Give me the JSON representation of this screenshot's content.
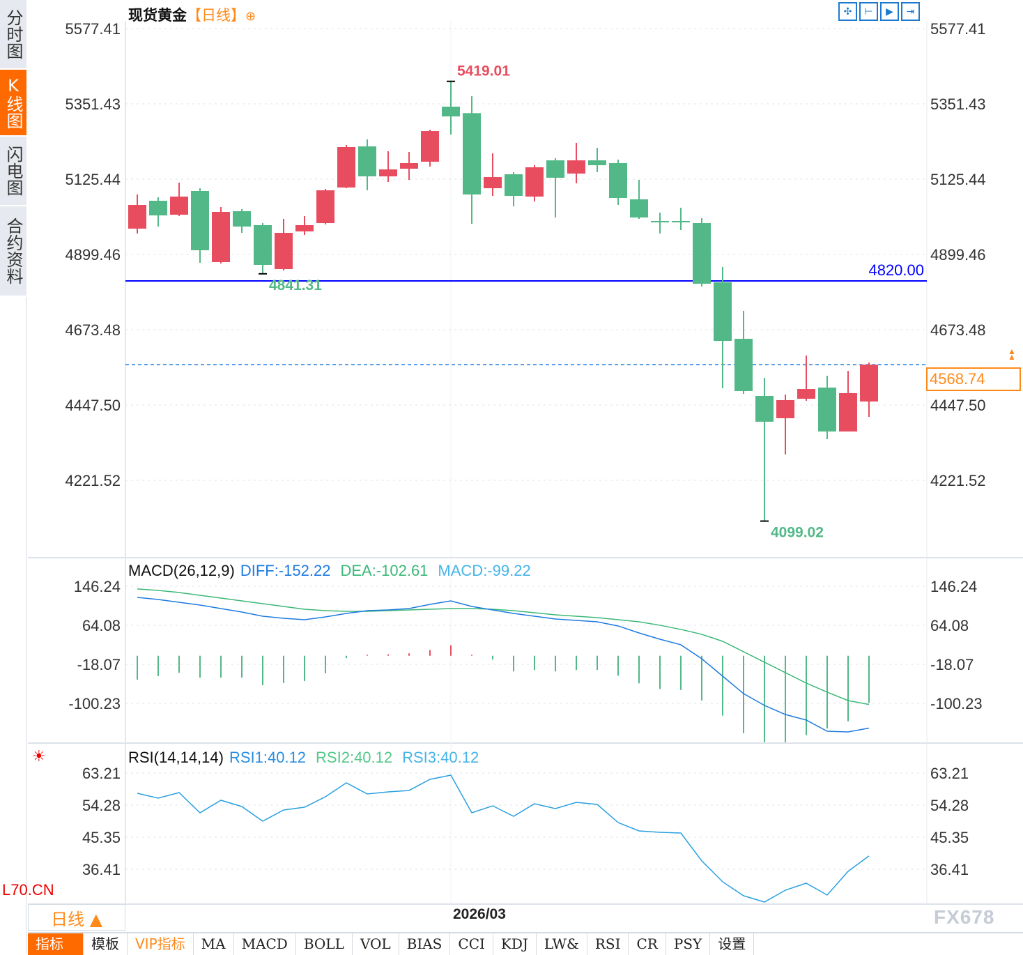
{
  "sidebar": {
    "items": [
      {
        "label": "分时图",
        "active": false
      },
      {
        "label": "K线图",
        "active": true
      },
      {
        "label": "闪电图",
        "active": false
      },
      {
        "label": "合约资料",
        "active": false
      }
    ]
  },
  "header": {
    "instrument": "现货黄金",
    "period": "【日线】",
    "tools": [
      "crosshair-icon",
      "zoom-range-icon",
      "play-icon",
      "goto-end-icon"
    ]
  },
  "colors": {
    "up": "#e84d5f",
    "down": "#52b887",
    "diff": "#1e7be0",
    "dea": "#3cb878",
    "rsi": "#2aa0e0",
    "accent": "#ff6a00",
    "hline": "#0000ff"
  },
  "main": {
    "y_ticks": [
      "5577.41",
      "5351.43",
      "5125.44",
      "4899.46",
      "4673.48",
      "4447.50",
      "4221.52"
    ],
    "high_marker": "5419.01",
    "low_marker_1": "4841.31",
    "low_marker_2": "4099.02",
    "hline_label": "4820.00",
    "last_price": "4568.74"
  },
  "macd": {
    "title": "MACD(26,12,9)",
    "diff_label": "DIFF:-152.22",
    "dea_label": "DEA:-102.61",
    "macd_label": "MACD:-99.22",
    "y_ticks": [
      "146.24",
      "64.08",
      "-18.07",
      "-100.23"
    ]
  },
  "rsi": {
    "title": "RSI(14,14,14)",
    "rsi1_label": "RSI1:40.12",
    "rsi2_label": "RSI2:40.12",
    "rsi3_label": "RSI3:40.12",
    "y_ticks": [
      "63.21",
      "54.28",
      "45.35",
      "36.41"
    ]
  },
  "footer": {
    "period": "日线 ▲",
    "date": "2026/03",
    "overlay_code": "L70.CN",
    "watermark": "FX678",
    "tabs": [
      "指标",
      "模板",
      "VIP指标",
      "MA",
      "MACD",
      "BOLL",
      "VOL",
      "BIAS",
      "CCI",
      "KDJ",
      "LW&",
      "RSI",
      "CR",
      "PSY",
      "设置"
    ]
  },
  "chart_data": {
    "type": "candlestick",
    "title": "现货黄金 日线",
    "ylim": [
      4099.02,
      5577.41
    ],
    "hline": 4820.0,
    "last": 4568.74,
    "ohlc": [
      [
        4976.9,
        5079.4,
        4962.2,
        5048.0
      ],
      [
        5060.6,
        5071.1,
        4983.2,
        5016.6
      ],
      [
        5018.7,
        5115.0,
        5014.6,
        5073.1
      ],
      [
        5089.9,
        5098.2,
        4874.4,
        4912.0
      ],
      [
        4876.5,
        5041.8,
        4872.3,
        5027.1
      ],
      [
        5029.2,
        5035.5,
        4964.3,
        4983.2
      ],
      [
        4987.4,
        4993.6,
        4841.31,
        4868.1
      ],
      [
        4855.5,
        5006.2,
        4851.3,
        4964.3
      ],
      [
        4968.5,
        5014.6,
        4958.1,
        4987.4
      ],
      [
        4993.6,
        5096.2,
        4989.5,
        5092.0
      ],
      [
        5100.3,
        5228.0,
        5098.2,
        5221.7
      ],
      [
        5223.8,
        5244.7,
        5092.0,
        5133.8
      ],
      [
        5133.8,
        5209.1,
        5117.1,
        5154.7
      ],
      [
        5156.8,
        5207.1,
        5123.4,
        5173.6
      ],
      [
        5177.8,
        5274.0,
        5163.1,
        5269.8
      ],
      [
        5343.1,
        5419.01,
        5259.4,
        5313.8
      ],
      [
        5323.6,
        5374.4,
        4991.5,
        5079.4
      ],
      [
        5098.2,
        5202.9,
        5075.2,
        5131.7
      ],
      [
        5140.1,
        5146.4,
        5043.8,
        5075.2
      ],
      [
        5073.1,
        5167.3,
        5058.5,
        5161.0
      ],
      [
        5181.9,
        5188.2,
        5010.4,
        5129.6
      ],
      [
        5142.2,
        5234.3,
        5112.9,
        5181.9
      ],
      [
        5181.9,
        5219.6,
        5146.4,
        5167.3
      ],
      [
        5173.6,
        5184.0,
        5048.0,
        5069.0
      ],
      [
        5064.8,
        5123.4,
        5006.2,
        5010.4
      ],
      [
        4999.9,
        5025.0,
        4962.2,
        4997.8
      ],
      [
        4999.9,
        5039.7,
        4972.7,
        4995.7
      ],
      [
        4993.6,
        5008.3,
        4803.2,
        4811.6
      ],
      [
        4815.8,
        4861.8,
        4497.7,
        4640.0
      ],
      [
        4646.3,
        4730.0,
        4481.0,
        4489.4
      ],
      [
        4474.7,
        4529.1,
        4099.02,
        4397.3
      ],
      [
        4407.8,
        4478.9,
        4299.0,
        4462.2
      ],
      [
        4466.3,
        4596.1,
        4460.1,
        4495.6
      ],
      [
        4499.8,
        4535.4,
        4345.0,
        4368.0
      ],
      [
        4368.0,
        4550.0,
        4368.0,
        4483.1
      ],
      [
        4458.0,
        4575.2,
        4412.0,
        4568.74
      ]
    ],
    "macd_ylim": [
      -190,
      160
    ],
    "macd_hist": [
      -50.3,
      -43,
      -35.7,
      -46,
      -46,
      -46,
      -62,
      -57.6,
      -53.3,
      -37.1,
      -5,
      2,
      3,
      5,
      12,
      22,
      2,
      -8,
      -33,
      -30,
      -33,
      -30,
      -30,
      -42,
      -58,
      -70,
      -72,
      -94,
      -126,
      -163,
      -182,
      -182,
      -167,
      -153,
      -138,
      -99.22
    ],
    "diff": [
      122.8,
      118.4,
      112.5,
      106.6,
      99.3,
      92.0,
      83.2,
      78.8,
      75.9,
      81.7,
      89.0,
      94.9,
      96.4,
      99.3,
      108.1,
      115.5,
      103.7,
      96.4,
      89.0,
      83.2,
      77.3,
      74.4,
      71.5,
      62.7,
      48.0,
      34.8,
      23.1,
      -6.3,
      -43.0,
      -79.7,
      -104.6,
      -123.7,
      -135.4,
      -158.9,
      -160.3,
      -152.22
    ],
    "dea": [
      140.5,
      137.5,
      133.1,
      127.2,
      121.3,
      115.5,
      109.6,
      103.7,
      97.9,
      94.9,
      93.5,
      93.5,
      94.9,
      96.4,
      97.9,
      99.3,
      99.3,
      97.9,
      94.9,
      90.5,
      86.1,
      83.2,
      80.2,
      75.9,
      71.5,
      64.2,
      55.4,
      45.1,
      30.4,
      8.4,
      -13.6,
      -35.6,
      -57.6,
      -76.7,
      -94.3,
      -102.61
    ],
    "rsi": [
      57.58,
      56.22,
      57.77,
      52.14,
      55.64,
      53.89,
      49.81,
      52.92,
      53.69,
      56.61,
      60.49,
      57.38,
      57.97,
      58.36,
      61.46,
      62.63,
      52.14,
      54.08,
      51.17,
      54.66,
      53.31,
      55.05,
      54.47,
      49.42,
      47.09,
      46.7,
      46.51,
      38.74,
      32.92,
      29.03,
      27.28,
      30.58,
      32.53,
      29.23,
      35.83,
      40.12
    ],
    "x_label": "2026/03"
  }
}
